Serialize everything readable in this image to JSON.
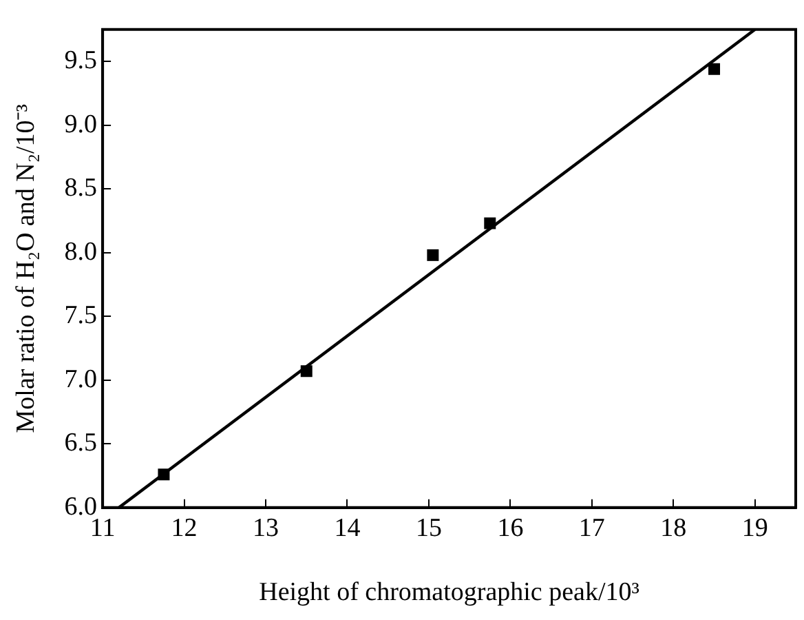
{
  "chart_data": {
    "type": "scatter",
    "xlabel": "Height of chromatographic peak/10³",
    "ylabel": "Molar ratio of H₂O and N₂/10⁻³",
    "xlim": [
      11,
      19.5
    ],
    "xticks": [
      11,
      12,
      13,
      14,
      15,
      16,
      17,
      18,
      19
    ],
    "ylim": [
      6.0,
      9.75
    ],
    "yticks": [
      {
        "value": 6,
        "label": "6.0"
      },
      {
        "value": 6.5,
        "label": "6.5"
      },
      {
        "value": 7,
        "label": "7.0"
      },
      {
        "value": 7.5,
        "label": "7.5"
      },
      {
        "value": 8,
        "label": "8.0"
      },
      {
        "value": 8.5,
        "label": "8.5"
      },
      {
        "value": 9,
        "label": "9.0"
      },
      {
        "value": 9.5,
        "label": "9.5"
      }
    ],
    "grid": false,
    "legend": false,
    "marker": "square",
    "series": [
      {
        "type": "scatter",
        "color": "#000000",
        "x": [
          11.75,
          13.5,
          15.05,
          15.75,
          18.5
        ],
        "values": [
          6.26,
          7.07,
          7.98,
          8.23,
          9.44
        ]
      },
      {
        "type": "line",
        "color": "#000000",
        "marker": "none",
        "line_style": "solid",
        "x": [
          11.2,
          19.0
        ],
        "values": [
          6.0,
          9.75
        ]
      }
    ]
  }
}
